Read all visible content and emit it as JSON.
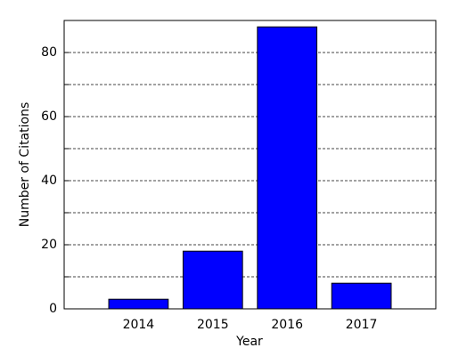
{
  "chart_data": {
    "type": "bar",
    "x": [
      2014,
      2015,
      2016,
      2017
    ],
    "values": [
      3,
      18,
      88,
      8
    ],
    "color": "#0000ff",
    "xlim": [
      2013,
      2018
    ],
    "xticks": [
      2014,
      2015,
      2016,
      2017
    ],
    "ylim": [
      0,
      90
    ],
    "yticks": [
      0,
      20,
      40,
      60,
      80
    ],
    "minor_yticks": [
      10,
      30,
      50,
      70
    ],
    "grid": true,
    "xlabel": "Year",
    "ylabel": "Number of Citations"
  }
}
